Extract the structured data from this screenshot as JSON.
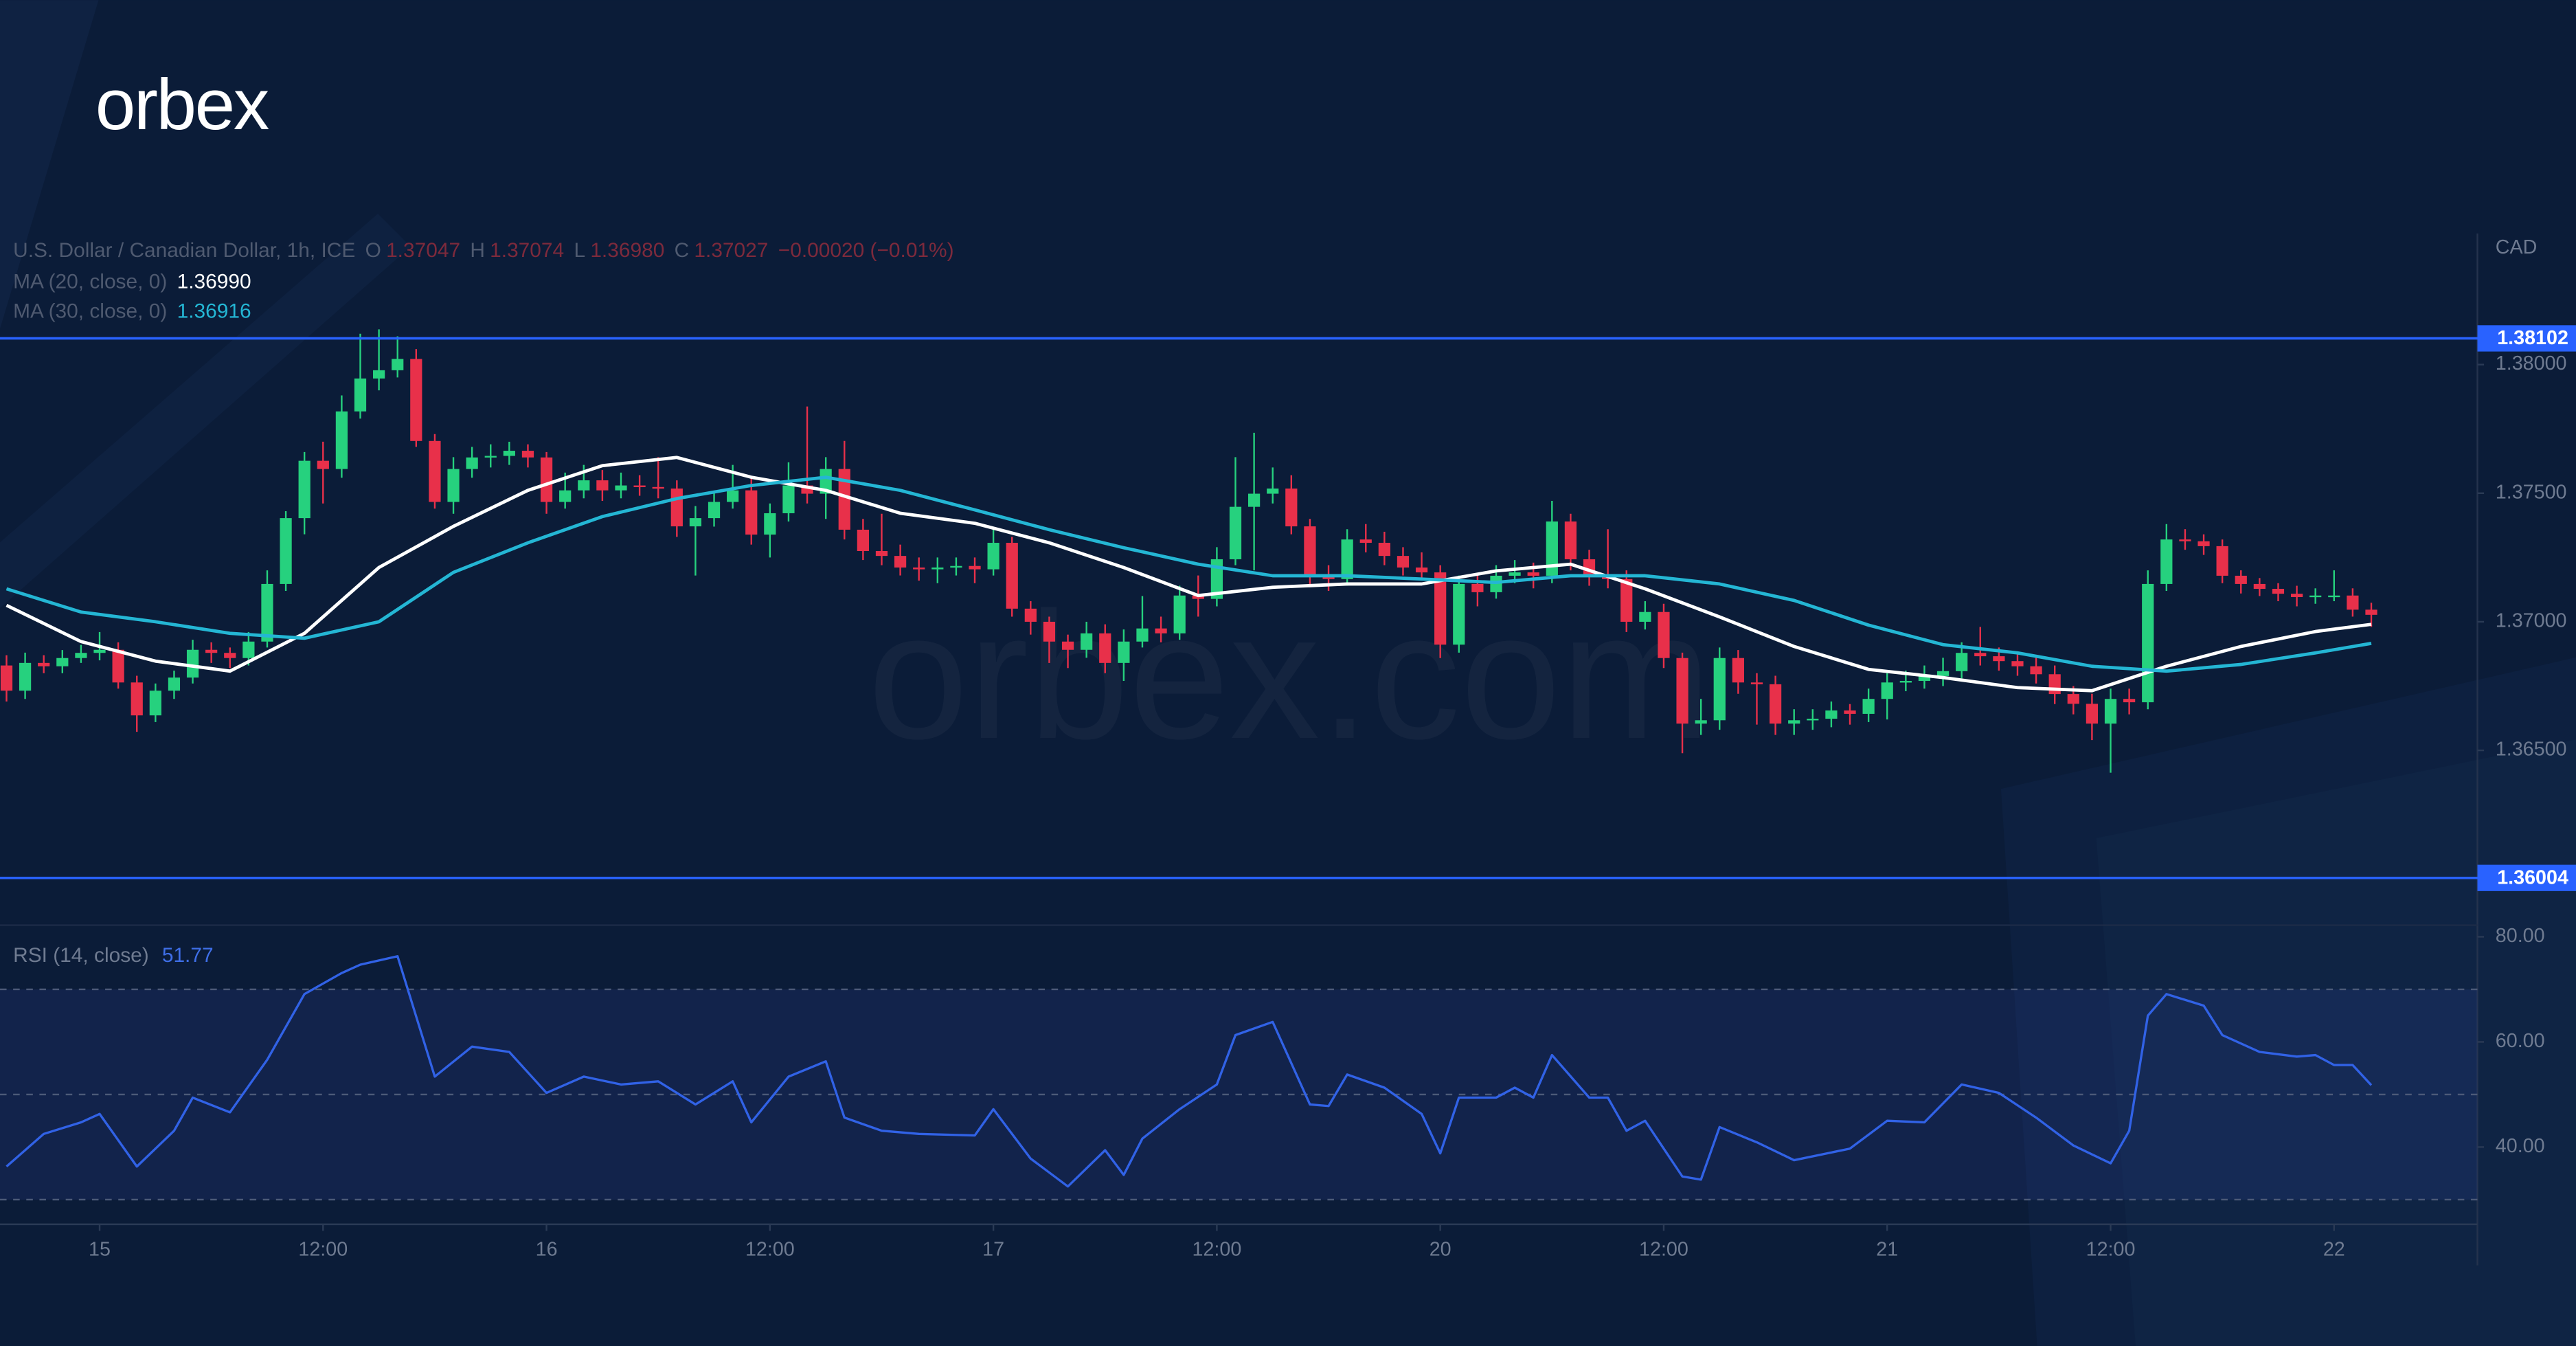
{
  "logo": "orbex",
  "watermark": "orbex.com",
  "chart_data": [
    {
      "type": "candlestick",
      "title": "U.S. Dollar / Canadian Dollar, 1h, ICE",
      "ohlc": [
        {
          "key": "O",
          "value": "1.37047"
        },
        {
          "key": "H",
          "value": "1.37074"
        },
        {
          "key": "L",
          "value": "1.36980"
        },
        {
          "key": "C",
          "value": "1.37027"
        }
      ],
      "change": "−0.00020 (−0.01%)",
      "unit": "CAD",
      "up_color": "#26d17e",
      "down_color": "#e8304a",
      "xlim": [
        -0.35,
        132.7
      ],
      "ylim": [
        1.3582,
        1.3851
      ],
      "yticks": [
        {
          "value": 1.365,
          "label": "1.36500"
        },
        {
          "value": 1.37,
          "label": "1.37000"
        },
        {
          "value": 1.375,
          "label": "1.37500"
        },
        {
          "value": 1.38,
          "label": "1.38000"
        }
      ],
      "levels": [
        1.38102,
        1.36004
      ],
      "level_color": "#2962ff",
      "open": [
        1.3683,
        1.36732,
        1.3684,
        1.36827,
        1.36859,
        1.36879,
        1.36891,
        1.36764,
        1.36636,
        1.36732,
        1.36783,
        1.36891,
        1.36879,
        1.36859,
        1.36923,
        1.37147,
        1.37403,
        1.37626,
        1.37594,
        1.37818,
        1.37946,
        1.37978,
        1.38022,
        1.37703,
        1.37466,
        1.37594,
        1.37639,
        1.37645,
        1.37665,
        1.37639,
        1.37466,
        1.37511,
        1.3755,
        1.37511,
        1.3753,
        1.37524,
        1.37518,
        1.37371,
        1.37403,
        1.37466,
        1.37511,
        1.37339,
        1.37422,
        1.3753,
        1.37498,
        1.37594,
        1.37358,
        1.37275,
        1.37256,
        1.37211,
        1.37204,
        1.37211,
        1.37217,
        1.37204,
        1.37307,
        1.37051,
        1.37,
        1.36923,
        1.36891,
        1.36955,
        1.3684,
        1.36923,
        1.36974,
        1.36955,
        1.37102,
        1.37089,
        1.37243,
        1.37447,
        1.37498,
        1.37518,
        1.37371,
        1.37179,
        1.37166,
        1.3732,
        1.37307,
        1.37256,
        1.37211,
        1.37192,
        1.36911,
        1.37147,
        1.37115,
        1.37179,
        1.37192,
        1.37179,
        1.3739,
        1.37243,
        1.37179,
        1.37166,
        1.37,
        1.37038,
        1.36859,
        1.36604,
        1.36617,
        1.36859,
        1.36764,
        1.36757,
        1.36604,
        1.36617,
        1.36623,
        1.36655,
        1.36642,
        1.367,
        1.36764,
        1.3677,
        1.36789,
        1.36808,
        1.36879,
        1.36866,
        1.36847,
        1.36827,
        1.36796,
        1.36719,
        1.36681,
        1.36604,
        1.367,
        1.36687,
        1.37147,
        1.3732,
        1.37313,
        1.37294,
        1.37179,
        1.37147,
        1.37128,
        1.37109,
        1.37096,
        1.37102,
        1.37102,
        1.37047
      ],
      "high": [
        1.3687,
        1.3688,
        1.3687,
        1.3689,
        1.3691,
        1.3696,
        1.3692,
        1.3679,
        1.3676,
        1.3681,
        1.3693,
        1.3692,
        1.369,
        1.3696,
        1.372,
        1.3743,
        1.3766,
        1.377,
        1.3788,
        1.3812,
        1.38137,
        1.3811,
        1.3806,
        1.3773,
        1.3764,
        1.3768,
        1.3769,
        1.377,
        1.3769,
        1.3766,
        1.3758,
        1.3761,
        1.3759,
        1.3758,
        1.3757,
        1.3764,
        1.3755,
        1.3745,
        1.375,
        1.3761,
        1.3756,
        1.3746,
        1.3762,
        1.37837,
        1.3764,
        1.37703,
        1.374,
        1.3742,
        1.373,
        1.3725,
        1.3725,
        1.3725,
        1.3725,
        1.3736,
        1.3733,
        1.3708,
        1.3702,
        1.3695,
        1.37,
        1.3699,
        1.3697,
        1.371,
        1.3702,
        1.3714,
        1.3718,
        1.3729,
        1.3764,
        1.37735,
        1.376,
        1.3757,
        1.374,
        1.3722,
        1.3736,
        1.3738,
        1.3735,
        1.3729,
        1.3727,
        1.3722,
        1.3718,
        1.3719,
        1.3722,
        1.3724,
        1.3723,
        1.3747,
        1.3742,
        1.3728,
        1.3736,
        1.372,
        1.3708,
        1.3707,
        1.3688,
        1.367,
        1.369,
        1.3689,
        1.368,
        1.3679,
        1.3666,
        1.3666,
        1.3669,
        1.3668,
        1.3674,
        1.368,
        1.3681,
        1.3683,
        1.3686,
        1.3692,
        1.3698,
        1.369,
        1.3688,
        1.3686,
        1.3683,
        1.3675,
        1.3672,
        1.3674,
        1.3674,
        1.372,
        1.3738,
        1.3736,
        1.3734,
        1.3732,
        1.372,
        1.3717,
        1.3715,
        1.3714,
        1.3713,
        1.372,
        1.3713,
        1.37074
      ],
      "low": [
        1.3669,
        1.367,
        1.368,
        1.368,
        1.3684,
        1.3685,
        1.3674,
        1.36572,
        1.3661,
        1.367,
        1.3676,
        1.3684,
        1.3682,
        1.3683,
        1.369,
        1.3712,
        1.3734,
        1.3746,
        1.3756,
        1.3779,
        1.379,
        1.3795,
        1.3768,
        1.3744,
        1.3742,
        1.3756,
        1.376,
        1.3761,
        1.376,
        1.3742,
        1.3744,
        1.3748,
        1.3747,
        1.3748,
        1.3749,
        1.3748,
        1.3733,
        1.3718,
        1.3737,
        1.3744,
        1.373,
        1.3725,
        1.3739,
        1.3746,
        1.374,
        1.3732,
        1.3724,
        1.3722,
        1.3718,
        1.3716,
        1.3715,
        1.3718,
        1.3715,
        1.3718,
        1.3702,
        1.3695,
        1.3684,
        1.3682,
        1.3686,
        1.368,
        1.3677,
        1.369,
        1.3692,
        1.3693,
        1.3702,
        1.3706,
        1.3722,
        1.372,
        1.3746,
        1.3734,
        1.3714,
        1.3712,
        1.3714,
        1.3727,
        1.3722,
        1.3718,
        1.3716,
        1.36859,
        1.3688,
        1.3706,
        1.3709,
        1.3715,
        1.3713,
        1.3715,
        1.372,
        1.3714,
        1.3713,
        1.3696,
        1.3697,
        1.3682,
        1.36489,
        1.3656,
        1.3658,
        1.3672,
        1.366,
        1.3656,
        1.3656,
        1.3658,
        1.3659,
        1.366,
        1.3661,
        1.3662,
        1.3673,
        1.3674,
        1.3675,
        1.3678,
        1.3683,
        1.3681,
        1.3679,
        1.3676,
        1.3668,
        1.3664,
        1.3654,
        1.36413,
        1.3664,
        1.3666,
        1.3712,
        1.3728,
        1.3726,
        1.3715,
        1.3711,
        1.371,
        1.3708,
        1.3706,
        1.3707,
        1.3708,
        1.3702,
        1.3698
      ],
      "close": [
        1.36732,
        1.3684,
        1.36827,
        1.36859,
        1.36879,
        1.36891,
        1.36764,
        1.36636,
        1.36732,
        1.36783,
        1.36891,
        1.36879,
        1.36859,
        1.36923,
        1.37147,
        1.37403,
        1.37626,
        1.37594,
        1.37818,
        1.37946,
        1.37978,
        1.38022,
        1.37703,
        1.37466,
        1.37594,
        1.37639,
        1.37645,
        1.37665,
        1.37639,
        1.37466,
        1.37511,
        1.3755,
        1.37511,
        1.3753,
        1.37524,
        1.37518,
        1.37371,
        1.37403,
        1.37466,
        1.37511,
        1.37339,
        1.37422,
        1.3753,
        1.37498,
        1.37594,
        1.37358,
        1.37275,
        1.37256,
        1.37211,
        1.37204,
        1.37211,
        1.37217,
        1.37204,
        1.37307,
        1.37051,
        1.37,
        1.36923,
        1.36891,
        1.36955,
        1.3684,
        1.36923,
        1.36974,
        1.36955,
        1.37102,
        1.37089,
        1.37243,
        1.37447,
        1.37498,
        1.37518,
        1.37371,
        1.37179,
        1.37166,
        1.3732,
        1.37307,
        1.37256,
        1.37211,
        1.37192,
        1.36911,
        1.37147,
        1.37115,
        1.37179,
        1.37192,
        1.37179,
        1.3739,
        1.37243,
        1.37179,
        1.37166,
        1.37,
        1.37038,
        1.36859,
        1.36604,
        1.36617,
        1.36859,
        1.36764,
        1.36757,
        1.36604,
        1.36617,
        1.36623,
        1.36655,
        1.36642,
        1.367,
        1.36764,
        1.3677,
        1.36789,
        1.36808,
        1.36879,
        1.36866,
        1.36847,
        1.36827,
        1.36796,
        1.36719,
        1.36681,
        1.36604,
        1.367,
        1.36687,
        1.37147,
        1.3732,
        1.37313,
        1.37294,
        1.37179,
        1.37147,
        1.37128,
        1.37109,
        1.37096,
        1.37102,
        1.37102,
        1.37047,
        1.37027
      ],
      "series": [
        {
          "name": "MA (20, close, 0)",
          "label": "1.36990",
          "color": "#ffffff",
          "x": [
            0,
            4,
            8,
            12,
            16,
            20,
            24,
            28,
            32,
            36,
            40,
            44,
            48,
            52,
            56,
            60,
            64,
            68,
            72,
            76,
            80,
            84,
            88,
            92,
            96,
            100,
            104,
            108,
            112,
            116,
            120,
            124,
            127
          ],
          "values": [
            1.37064,
            1.36923,
            1.36847,
            1.36808,
            1.36955,
            1.37211,
            1.37371,
            1.37511,
            1.37607,
            1.37639,
            1.37562,
            1.37511,
            1.37422,
            1.37383,
            1.37307,
            1.37211,
            1.37102,
            1.37134,
            1.37147,
            1.37147,
            1.37198,
            1.37224,
            1.37128,
            1.37019,
            1.36904,
            1.36815,
            1.36783,
            1.36744,
            1.36732,
            1.36827,
            1.36904,
            1.36962,
            1.3699
          ]
        },
        {
          "name": "MA (30, close, 0)",
          "label": "1.36916",
          "color": "#24b6d4",
          "x": [
            0,
            4,
            8,
            12,
            16,
            20,
            24,
            28,
            32,
            36,
            40,
            44,
            48,
            52,
            56,
            60,
            64,
            68,
            72,
            76,
            80,
            84,
            88,
            92,
            96,
            100,
            104,
            108,
            112,
            116,
            120,
            124,
            127
          ],
          "values": [
            1.37128,
            1.37038,
            1.37,
            1.36955,
            1.36936,
            1.37,
            1.37192,
            1.37307,
            1.37409,
            1.37479,
            1.3753,
            1.37562,
            1.37511,
            1.37435,
            1.37358,
            1.37288,
            1.37224,
            1.37179,
            1.37179,
            1.37166,
            1.37153,
            1.37179,
            1.37179,
            1.37147,
            1.37083,
            1.36987,
            1.36911,
            1.36879,
            1.36827,
            1.36808,
            1.36834,
            1.36879,
            1.36916
          ]
        }
      ]
    },
    {
      "type": "line",
      "title": "RSI (14, close)",
      "xlim": [
        -0.35,
        132.7
      ],
      "xticks": [
        {
          "value": 5,
          "label": "15"
        },
        {
          "value": 17,
          "label": "12:00"
        },
        {
          "value": 29,
          "label": "16"
        },
        {
          "value": 41,
          "label": "12:00"
        },
        {
          "value": 53,
          "label": "17"
        },
        {
          "value": 65,
          "label": "12:00"
        },
        {
          "value": 77,
          "label": "20"
        },
        {
          "value": 89,
          "label": "12:00"
        },
        {
          "value": 101,
          "label": "21"
        },
        {
          "value": 113,
          "label": "12:00"
        },
        {
          "value": 125,
          "label": "22"
        }
      ],
      "ylim": [
        25.3,
        82.2
      ],
      "yticks": [
        {
          "value": 40,
          "label": "40.00"
        },
        {
          "value": 60,
          "label": "60.00"
        },
        {
          "value": 80,
          "label": "80.00"
        }
      ],
      "levels": [
        70,
        50,
        30
      ],
      "series": [
        {
          "name": "RSI (14, close)",
          "color": "#3162e6",
          "x": [
            0,
            2,
            4,
            5,
            7,
            9,
            10,
            12,
            14,
            16,
            18,
            19,
            21,
            23,
            25,
            27,
            29,
            31,
            33,
            35,
            37,
            39,
            40,
            42,
            44,
            45,
            47,
            49,
            52,
            53,
            55,
            57,
            59,
            60,
            61,
            63,
            65,
            66,
            68,
            70,
            71,
            72,
            74,
            76,
            77,
            78,
            80,
            81,
            82,
            83,
            85,
            86,
            87,
            88,
            90,
            91,
            92,
            94,
            96,
            99,
            101,
            103,
            105,
            107,
            109,
            111,
            113,
            114,
            115,
            116,
            118,
            119,
            121,
            123,
            124,
            125,
            126,
            127
          ],
          "values": [
            36.3,
            42.5,
            44.7,
            46.3,
            36.3,
            43.1,
            49.4,
            46.6,
            56.6,
            69.1,
            73.1,
            74.7,
            76.3,
            53.4,
            59.1,
            58.1,
            50.3,
            53.4,
            51.9,
            52.5,
            48.1,
            52.5,
            44.7,
            53.4,
            56.3,
            45.6,
            43.1,
            42.5,
            42.2,
            47.2,
            37.8,
            32.5,
            39.4,
            34.7,
            41.6,
            47.2,
            51.9,
            61.3,
            63.8,
            48.1,
            47.8,
            53.8,
            51.3,
            46.3,
            38.8,
            49.4,
            49.4,
            51.3,
            49.4,
            57.5,
            49.4,
            49.4,
            43.1,
            45.0,
            34.4,
            33.8,
            43.8,
            40.9,
            37.5,
            39.7,
            45.0,
            44.7,
            51.9,
            50.3,
            45.6,
            40.3,
            36.9,
            43.1,
            65.0,
            69.1,
            66.9,
            61.3,
            58.1,
            57.2,
            57.5,
            55.6,
            55.6,
            51.77
          ]
        }
      ]
    }
  ]
}
